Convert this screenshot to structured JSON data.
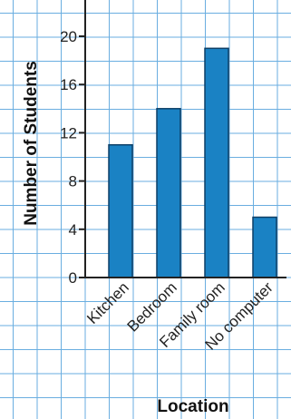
{
  "chart_data": {
    "type": "bar",
    "title": "",
    "xlabel": "Location",
    "ylabel": "Number of Students",
    "categories": [
      "Kitchen",
      "Bedroom",
      "Family room",
      "No computer"
    ],
    "values": [
      11,
      14,
      19,
      5
    ],
    "ylim": [
      0,
      22
    ],
    "yticks": [
      0,
      4,
      8,
      12,
      16,
      20
    ],
    "grid": true,
    "legend": "none",
    "colors": {
      "bar": "#1a82c4",
      "bar_outline": "#0d3f66",
      "grid": "#6aaee0",
      "axis": "#222222"
    }
  }
}
